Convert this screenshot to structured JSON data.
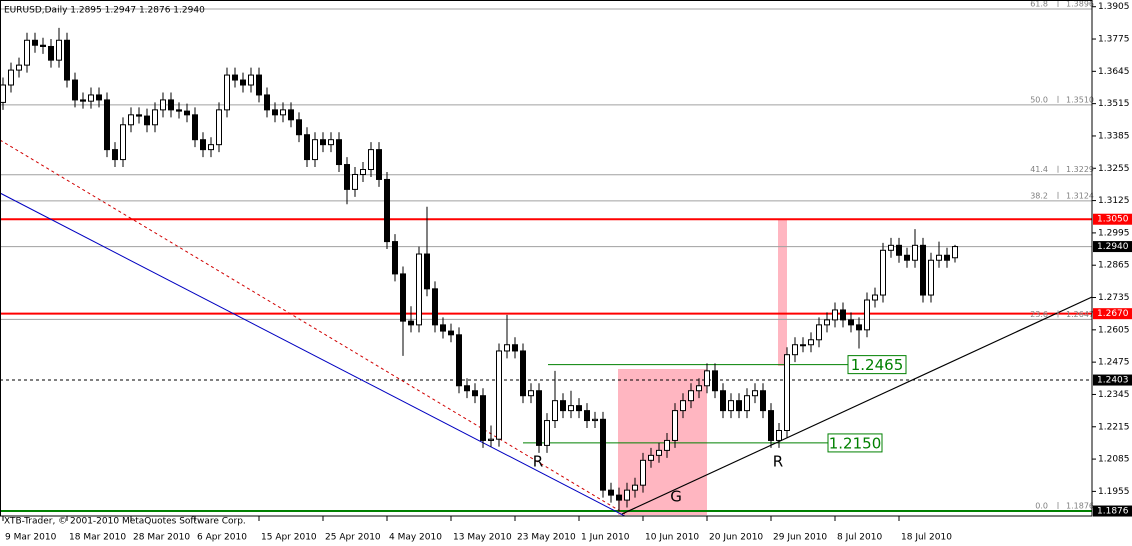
{
  "chart_data": {
    "type": "candlestick",
    "header": "EURUSD,Daily  1.2895 1.2947 1.2876 1.2940",
    "copyright": "XTB-Trader, © 2001-2010 MetaQuotes Software Corp.",
    "up_color": "#ffffff",
    "down_color": "#000000",
    "outline_color": "#000000",
    "ylim": [
      1.1856,
      1.3932
    ],
    "yticks": [
      1.3905,
      1.3775,
      1.3645,
      1.3515,
      1.3385,
      1.3255,
      1.3125,
      1.2995,
      1.2865,
      1.2735,
      1.2605,
      1.2475,
      1.2345,
      1.2215,
      1.2085,
      1.1955
    ],
    "categories": [
      "9 Mar 2010",
      null,
      null,
      null,
      null,
      null,
      null,
      null,
      "18 Mar 2010",
      null,
      null,
      null,
      null,
      null,
      null,
      null,
      "28 Mar 2010",
      null,
      null,
      null,
      null,
      null,
      null,
      null,
      "6 Apr 2010",
      null,
      null,
      null,
      null,
      null,
      null,
      null,
      "15 Apr 2010",
      null,
      null,
      null,
      null,
      null,
      null,
      null,
      "25 Apr 2010",
      null,
      null,
      null,
      null,
      null,
      null,
      null,
      "4 May 2010",
      null,
      null,
      null,
      null,
      null,
      null,
      null,
      "13 May 2010",
      null,
      null,
      null,
      null,
      null,
      null,
      null,
      "23 May 2010",
      null,
      null,
      null,
      null,
      null,
      null,
      null,
      "1 Jun 2010",
      null,
      null,
      null,
      null,
      null,
      null,
      null,
      "10 Jun 2010",
      null,
      null,
      null,
      null,
      null,
      null,
      null,
      "20 Jun 2010",
      null,
      null,
      null,
      null,
      null,
      null,
      null,
      "29 Jun 2010",
      null,
      null,
      null,
      null,
      null,
      null,
      null,
      "8 Jul 2010",
      null,
      null,
      null,
      null,
      null,
      null,
      null,
      "18 Jul 2010",
      null,
      null,
      null,
      null,
      null,
      null,
      null
    ],
    "candles": [
      [
        1.352,
        1.362,
        1.349,
        1.359
      ],
      [
        1.359,
        1.368,
        1.356,
        1.365
      ],
      [
        1.365,
        1.37,
        1.362,
        1.367
      ],
      [
        1.367,
        1.38,
        1.364,
        1.377
      ],
      [
        1.377,
        1.38,
        1.372,
        1.375
      ],
      [
        1.375,
        1.378,
        1.3715,
        1.3745
      ],
      [
        1.3745,
        1.3775,
        1.366,
        1.369
      ],
      [
        1.369,
        1.382,
        1.366,
        1.377
      ],
      [
        1.377,
        1.38,
        1.358,
        1.361
      ],
      [
        1.361,
        1.364,
        1.35,
        1.353
      ],
      [
        1.353,
        1.356,
        1.3495,
        1.3525
      ],
      [
        1.3525,
        1.358,
        1.3495,
        1.355
      ],
      [
        1.355,
        1.358,
        1.35,
        1.353
      ],
      [
        1.353,
        1.356,
        1.33,
        1.333
      ],
      [
        1.333,
        1.336,
        1.326,
        1.329
      ],
      [
        1.329,
        1.346,
        1.326,
        1.343
      ],
      [
        1.343,
        1.35,
        1.34,
        1.347
      ],
      [
        1.347,
        1.35,
        1.3435,
        1.3465
      ],
      [
        1.3465,
        1.3495,
        1.34,
        1.343
      ],
      [
        1.343,
        1.352,
        1.34,
        1.349
      ],
      [
        1.349,
        1.356,
        1.346,
        1.353
      ],
      [
        1.353,
        1.356,
        1.346,
        1.349
      ],
      [
        1.349,
        1.352,
        1.3455,
        1.3485
      ],
      [
        1.3485,
        1.3515,
        1.344,
        1.347
      ],
      [
        1.347,
        1.35,
        1.334,
        1.337
      ],
      [
        1.337,
        1.34,
        1.33,
        1.333
      ],
      [
        1.333,
        1.338,
        1.33,
        1.335
      ],
      [
        1.335,
        1.352,
        1.332,
        1.349
      ],
      [
        1.349,
        1.366,
        1.346,
        1.363
      ],
      [
        1.363,
        1.366,
        1.358,
        1.361
      ],
      [
        1.361,
        1.364,
        1.356,
        1.359
      ],
      [
        1.359,
        1.366,
        1.356,
        1.363
      ],
      [
        1.363,
        1.366,
        1.352,
        1.355
      ],
      [
        1.355,
        1.358,
        1.346,
        1.349
      ],
      [
        1.349,
        1.352,
        1.344,
        1.347
      ],
      [
        1.347,
        1.352,
        1.344,
        1.349
      ],
      [
        1.349,
        1.352,
        1.342,
        1.345
      ],
      [
        1.345,
        1.348,
        1.336,
        1.339
      ],
      [
        1.339,
        1.342,
        1.326,
        1.329
      ],
      [
        1.329,
        1.34,
        1.326,
        1.337
      ],
      [
        1.337,
        1.34,
        1.332,
        1.335
      ],
      [
        1.335,
        1.34,
        1.332,
        1.337
      ],
      [
        1.337,
        1.34,
        1.324,
        1.327
      ],
      [
        1.327,
        1.33,
        1.311,
        1.317
      ],
      [
        1.317,
        1.326,
        1.314,
        1.323
      ],
      [
        1.323,
        1.328,
        1.32,
        1.325
      ],
      [
        1.325,
        1.336,
        1.322,
        1.333
      ],
      [
        1.333,
        1.336,
        1.318,
        1.321
      ],
      [
        1.321,
        1.324,
        1.293,
        1.296
      ],
      [
        1.296,
        1.299,
        1.28,
        1.283
      ],
      [
        1.283,
        1.286,
        1.25,
        1.264
      ],
      [
        1.264,
        1.27,
        1.2595,
        1.2625
      ],
      [
        1.2625,
        1.294,
        1.2595,
        1.291
      ],
      [
        1.291,
        1.31,
        1.274,
        1.277
      ],
      [
        1.277,
        1.28,
        1.2595,
        1.2625
      ],
      [
        1.2625,
        1.2655,
        1.257,
        1.26
      ],
      [
        1.26,
        1.263,
        1.2555,
        1.2585
      ],
      [
        1.2585,
        1.2615,
        1.235,
        1.238
      ],
      [
        1.238,
        1.241,
        1.233,
        1.236
      ],
      [
        1.236,
        1.239,
        1.231,
        1.234
      ],
      [
        1.234,
        1.237,
        1.213,
        1.216
      ],
      [
        1.216,
        1.222,
        1.2135,
        1.2165
      ],
      [
        1.2165,
        1.255,
        1.2135,
        1.252
      ],
      [
        1.252,
        1.2665,
        1.249,
        1.2545
      ],
      [
        1.2545,
        1.2575,
        1.249,
        1.252
      ],
      [
        1.252,
        1.255,
        1.231,
        1.234
      ],
      [
        1.234,
        1.239,
        1.231,
        1.236
      ],
      [
        1.236,
        1.239,
        1.211,
        1.214
      ],
      [
        1.214,
        1.227,
        1.211,
        1.224
      ],
      [
        1.224,
        1.244,
        1.221,
        1.232
      ],
      [
        1.232,
        1.235,
        1.225,
        1.228
      ],
      [
        1.228,
        1.236,
        1.225,
        1.23
      ],
      [
        1.23,
        1.233,
        1.225,
        1.228
      ],
      [
        1.228,
        1.231,
        1.221,
        1.224
      ],
      [
        1.224,
        1.2275,
        1.221,
        1.2245
      ],
      [
        1.2245,
        1.2275,
        1.193,
        1.196
      ],
      [
        1.196,
        1.199,
        1.191,
        1.194
      ],
      [
        1.194,
        1.197,
        1.1876,
        1.192
      ],
      [
        1.192,
        1.199,
        1.189,
        1.196
      ],
      [
        1.196,
        1.201,
        1.193,
        1.198
      ],
      [
        1.198,
        1.211,
        1.195,
        1.208
      ],
      [
        1.208,
        1.213,
        1.205,
        1.21
      ],
      [
        1.21,
        1.215,
        1.207,
        1.212
      ],
      [
        1.212,
        1.219,
        1.209,
        1.216
      ],
      [
        1.216,
        1.231,
        1.213,
        1.228
      ],
      [
        1.228,
        1.235,
        1.225,
        1.232
      ],
      [
        1.232,
        1.239,
        1.229,
        1.236
      ],
      [
        1.236,
        1.241,
        1.233,
        1.238
      ],
      [
        1.238,
        1.247,
        1.235,
        1.244
      ],
      [
        1.244,
        1.247,
        1.233,
        1.236
      ],
      [
        1.236,
        1.239,
        1.225,
        1.228
      ],
      [
        1.228,
        1.235,
        1.225,
        1.232
      ],
      [
        1.232,
        1.235,
        1.225,
        1.228
      ],
      [
        1.228,
        1.237,
        1.225,
        1.234
      ],
      [
        1.234,
        1.239,
        1.231,
        1.236
      ],
      [
        1.236,
        1.239,
        1.225,
        1.228
      ],
      [
        1.228,
        1.231,
        1.213,
        1.216
      ],
      [
        1.216,
        1.223,
        1.213,
        1.22
      ],
      [
        1.22,
        1.2535,
        1.217,
        1.2505
      ],
      [
        1.2505,
        1.2575,
        1.2475,
        1.2545
      ],
      [
        1.2545,
        1.2575,
        1.2515,
        1.2545
      ],
      [
        1.2545,
        1.2595,
        1.2515,
        1.2565
      ],
      [
        1.2565,
        1.2655,
        1.2535,
        1.2625
      ],
      [
        1.2625,
        1.2675,
        1.2595,
        1.2645
      ],
      [
        1.2645,
        1.2715,
        1.2615,
        1.2685
      ],
      [
        1.2685,
        1.2715,
        1.2615,
        1.2645
      ],
      [
        1.2645,
        1.2675,
        1.2595,
        1.2625
      ],
      [
        1.2625,
        1.2655,
        1.253,
        1.2605
      ],
      [
        1.2605,
        1.2755,
        1.2575,
        1.2725
      ],
      [
        1.2725,
        1.2775,
        1.2695,
        1.2745
      ],
      [
        1.2745,
        1.2955,
        1.2715,
        1.2925
      ],
      [
        1.2925,
        1.2975,
        1.2895,
        1.2945
      ],
      [
        1.2945,
        1.2975,
        1.2875,
        1.2905
      ],
      [
        1.2905,
        1.2935,
        1.2855,
        1.2885
      ],
      [
        1.2885,
        1.301,
        1.2855,
        1.2945
      ],
      [
        1.2945,
        1.2975,
        1.2715,
        1.2745
      ],
      [
        1.2745,
        1.2915,
        1.2715,
        1.2885
      ],
      [
        1.2885,
        1.296,
        1.2855,
        1.2905
      ],
      [
        1.2905,
        1.2935,
        1.2855,
        1.2885
      ],
      [
        1.2895,
        1.2947,
        1.2876,
        1.294
      ]
    ],
    "levels": [
      {
        "value": 1.305,
        "label": "1.3050",
        "line_color": "#ff0000",
        "box_color": "#ff0000",
        "width": 2,
        "dash": false
      },
      {
        "value": 1.294,
        "label": "1.2940",
        "line_color": "#a0a0a0",
        "box_color": "#000000",
        "width": 1,
        "dash": false
      },
      {
        "value": 1.267,
        "label": "1.2670",
        "line_color": "#ff0000",
        "box_color": "#ff0000",
        "width": 2,
        "dash": false
      },
      {
        "value": 1.2403,
        "line_color": "#000000",
        "box_color": "#000000",
        "width": 1,
        "dash": true
      },
      {
        "value": 1.1876,
        "line_color": "#008000",
        "box_color": "#000000",
        "width": 2,
        "dash": false
      }
    ],
    "fibonacci": [
      {
        "level": "61.8",
        "price": 1.3896
      },
      {
        "level": "50.0",
        "price": {
          "value": 1.351,
          "label": "1.3510"
        }
      },
      {
        "level": "41.4",
        "price": 1.3229
      },
      {
        "level": "38.2",
        "price": 1.3124
      },
      {
        "level": "23.6",
        "price": 1.2647
      },
      {
        "level": "0.0",
        "price": 1.1876
      }
    ],
    "support_resistance": [
      {
        "value": 1.2465,
        "label": "1.2465"
      },
      {
        "value": 1.215,
        "label": "1.2150"
      }
    ],
    "annotations": [
      "R",
      "G",
      "R"
    ]
  }
}
